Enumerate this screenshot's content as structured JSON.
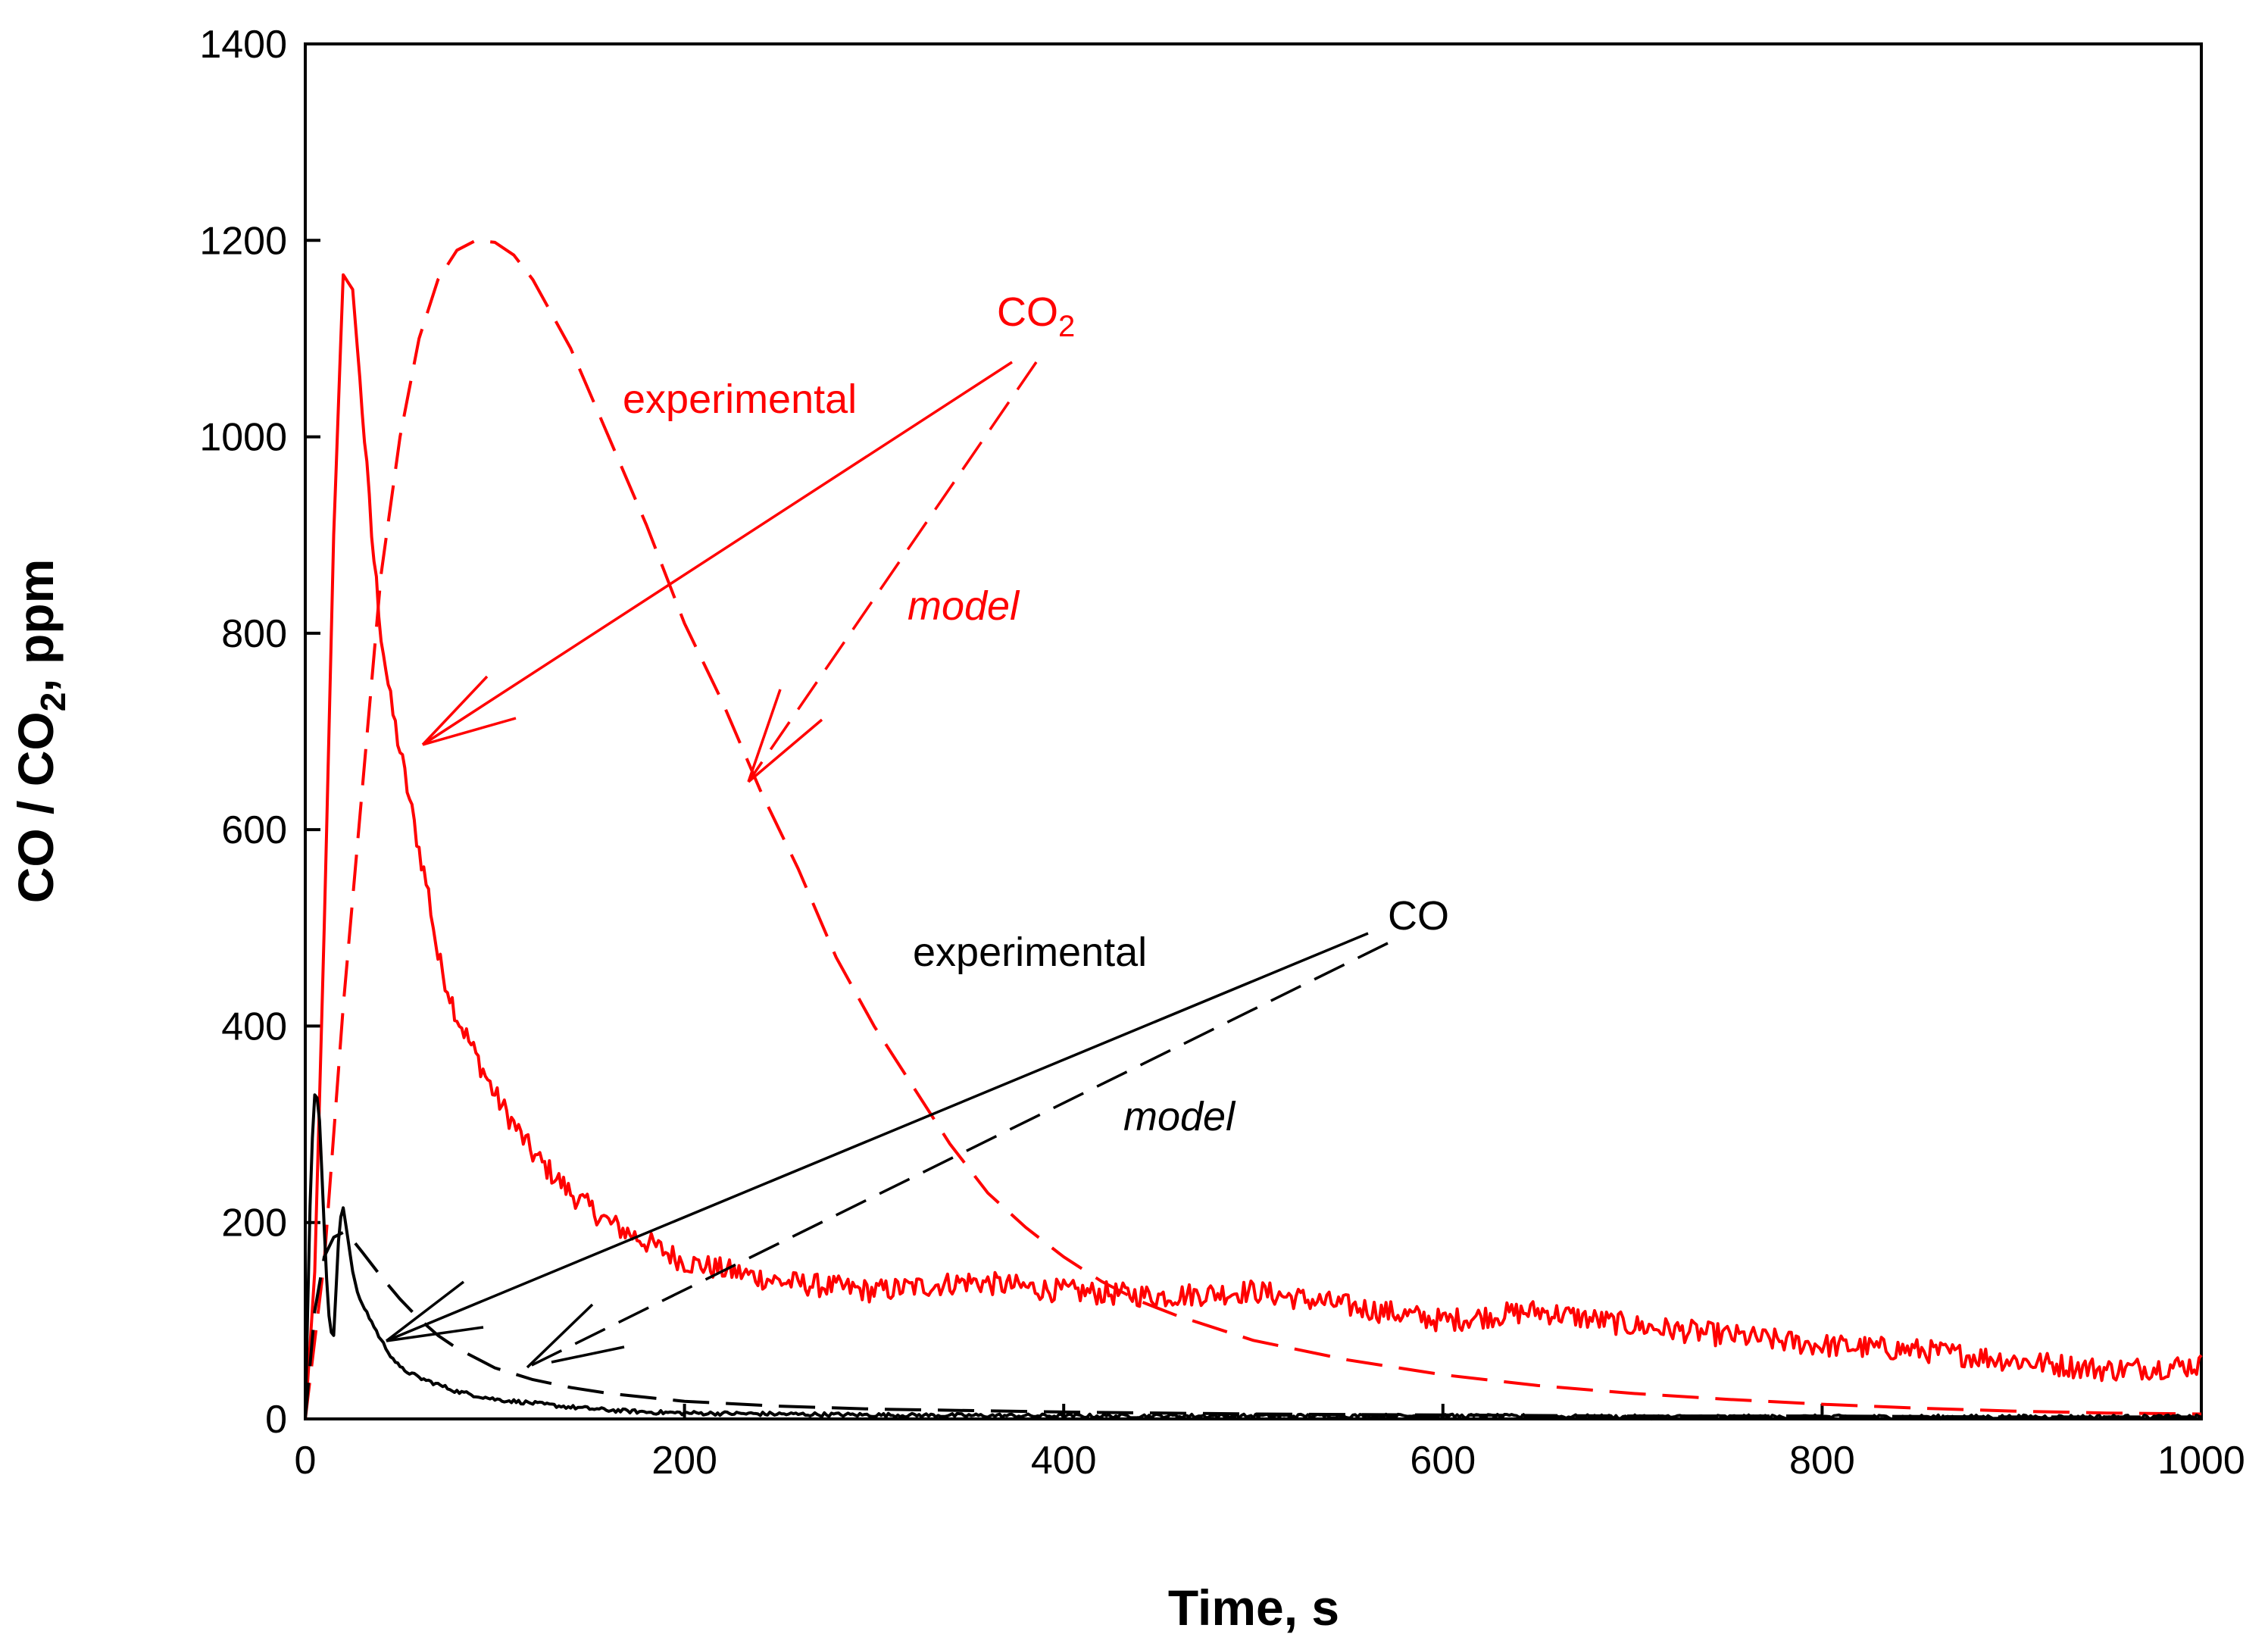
{
  "chart_data": {
    "type": "line",
    "title": "",
    "xlabel": "Time, s",
    "ylabel_parts": [
      "CO / CO",
      "2",
      ", ppm"
    ],
    "xlim": [
      0,
      1000
    ],
    "ylim": [
      0,
      1400
    ],
    "x_ticks": [
      0,
      200,
      400,
      600,
      800,
      1000
    ],
    "y_ticks": [
      0,
      200,
      400,
      600,
      800,
      1000,
      1200,
      1400
    ],
    "grid": false,
    "series": [
      {
        "name": "CO2 experimental",
        "color": "#ff0000",
        "dash": "solid",
        "x": [
          0,
          5,
          10,
          15,
          20,
          25,
          30,
          35,
          40,
          45,
          50,
          55,
          60,
          65,
          70,
          80,
          90,
          100,
          110,
          120,
          140,
          160,
          180,
          200,
          250,
          300,
          350,
          400,
          450,
          500,
          550,
          600,
          650,
          700,
          750,
          800,
          850,
          900,
          950,
          1000
        ],
        "y": [
          0,
          150,
          500,
          900,
          1165,
          1150,
          1030,
          900,
          800,
          730,
          680,
          630,
          580,
          535,
          470,
          410,
          370,
          330,
          300,
          270,
          230,
          200,
          180,
          160,
          140,
          130,
          140,
          130,
          125,
          130,
          115,
          100,
          110,
          95,
          85,
          75,
          70,
          60,
          50,
          55
        ],
        "noise": 12
      },
      {
        "name": "CO2 model",
        "color": "#ff0000",
        "dash": "long",
        "x": [
          0,
          10,
          20,
          30,
          40,
          50,
          60,
          70,
          80,
          90,
          100,
          110,
          120,
          140,
          160,
          180,
          200,
          220,
          240,
          260,
          280,
          300,
          320,
          340,
          360,
          380,
          400,
          420,
          440,
          460,
          500,
          550,
          600,
          650,
          700,
          750,
          800,
          850,
          900,
          950,
          1000
        ],
        "y": [
          0,
          160,
          420,
          640,
          860,
          1000,
          1100,
          1160,
          1190,
          1200,
          1198,
          1185,
          1160,
          1090,
          1000,
          910,
          810,
          730,
          640,
          560,
          470,
          400,
          340,
          280,
          230,
          195,
          165,
          140,
          120,
          105,
          80,
          60,
          45,
          34,
          26,
          20,
          15,
          11,
          8,
          6,
          5
        ]
      },
      {
        "name": "CO experimental",
        "color": "#000000",
        "dash": "solid",
        "x": [
          0,
          3,
          5,
          7,
          9,
          11,
          13,
          15,
          18,
          20,
          22,
          25,
          28,
          32,
          36,
          40,
          45,
          50,
          60,
          70,
          80,
          90,
          100,
          120,
          140,
          160,
          180,
          200,
          250,
          300,
          400,
          500,
          600,
          700,
          800,
          900,
          1000
        ],
        "y": [
          0,
          260,
          330,
          325,
          240,
          150,
          90,
          85,
          200,
          215,
          190,
          150,
          125,
          110,
          95,
          80,
          65,
          52,
          42,
          35,
          28,
          24,
          20,
          16,
          12,
          9,
          7,
          6,
          5,
          4,
          3,
          3,
          3,
          2,
          2,
          2,
          2
        ],
        "noise": 2
      },
      {
        "name": "CO model",
        "color": "#000000",
        "dash": "long",
        "x": [
          0,
          5,
          10,
          15,
          20,
          25,
          30,
          40,
          50,
          60,
          70,
          80,
          100,
          120,
          140,
          160,
          180,
          200,
          250,
          300,
          400,
          500,
          600,
          700,
          800,
          900,
          1000
        ],
        "y": [
          0,
          110,
          165,
          185,
          190,
          182,
          170,
          145,
          122,
          102,
          85,
          72,
          52,
          40,
          32,
          26,
          22,
          18,
          13,
          10,
          7,
          5,
          4,
          3,
          3,
          2,
          2
        ]
      }
    ],
    "annotations": {
      "co2_label": {
        "main": "CO",
        "sub": "2"
      },
      "co2_experimental": "experimental",
      "co2_model": "model",
      "co_label": "CO",
      "co_experimental": "experimental",
      "co_model": "model"
    }
  }
}
